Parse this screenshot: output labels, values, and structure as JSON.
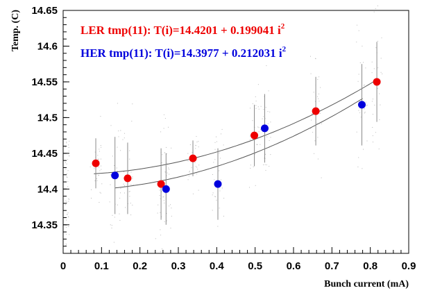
{
  "chart_data": {
    "type": "scatter",
    "xlabel": "Bunch current (mA)",
    "ylabel": "Temp. (C)",
    "xlim": [
      0,
      0.9
    ],
    "ylim": [
      14.31,
      14.65
    ],
    "x_ticks": [
      0,
      0.1,
      0.2,
      0.3,
      0.4,
      0.5,
      0.6,
      0.7,
      0.8,
      0.9
    ],
    "x_tick_labels": [
      "0",
      "0.1",
      "0.2",
      "0.3",
      "0.4",
      "0.5",
      "0.6",
      "0.7",
      "0.8",
      "0.9"
    ],
    "y_ticks": [
      14.35,
      14.4,
      14.45,
      14.5,
      14.55,
      14.6,
      14.65
    ],
    "y_tick_labels": [
      "14.35",
      "14.4",
      "14.45",
      "14.5",
      "14.55",
      "14.6",
      "14.65"
    ],
    "grid": false,
    "legend_position": "top-left",
    "series": [
      {
        "name": "LER tmp(11): T(i)=14.4201 + 0.199041 i",
        "superscript": "2",
        "color": "#ee0000",
        "fit": {
          "a": 14.4201,
          "b": 0.199041,
          "x_range": [
            0.08,
            0.82
          ]
        },
        "points": [
          {
            "x": 0.085,
            "y": 14.436,
            "err": 0.035
          },
          {
            "x": 0.168,
            "y": 14.415,
            "err": 0.05
          },
          {
            "x": 0.255,
            "y": 14.407,
            "err": 0.05
          },
          {
            "x": 0.338,
            "y": 14.443,
            "err": 0.025
          },
          {
            "x": 0.498,
            "y": 14.475,
            "err": 0.043
          },
          {
            "x": 0.658,
            "y": 14.509,
            "err": 0.048
          },
          {
            "x": 0.817,
            "y": 14.55,
            "err": 0.056
          }
        ]
      },
      {
        "name": "HER tmp(11): T(i)=14.3977 + 0.212031 i",
        "superscript": "2",
        "color": "#0000dd",
        "fit": {
          "a": 14.3977,
          "b": 0.212031,
          "x_range": [
            0.135,
            0.78
          ]
        },
        "points": [
          {
            "x": 0.135,
            "y": 14.419,
            "err": 0.054
          },
          {
            "x": 0.268,
            "y": 14.4,
            "err": 0.05
          },
          {
            "x": 0.403,
            "y": 14.407,
            "err": 0.05
          },
          {
            "x": 0.525,
            "y": 14.485,
            "err": 0.048
          },
          {
            "x": 0.778,
            "y": 14.518,
            "err": 0.057
          }
        ]
      }
    ]
  }
}
